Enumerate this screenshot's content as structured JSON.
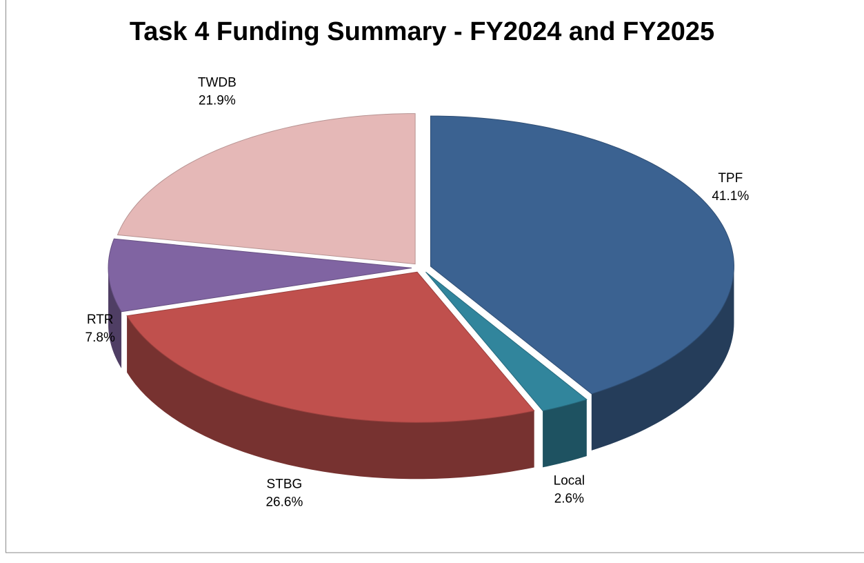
{
  "chart_data": {
    "type": "pie",
    "title": "Task 4 Funding Summary - FY2024 and FY2025",
    "categories": [
      "TPF",
      "Local",
      "STBG",
      "RTR",
      "TWDB"
    ],
    "values": [
      41.1,
      2.6,
      26.6,
      7.8,
      21.9
    ],
    "value_labels": [
      "41.1%",
      "2.6%",
      "26.6%",
      "7.8%",
      "21.9%"
    ],
    "colors": [
      "#3b6291",
      "#31859c",
      "#c0504d",
      "#8064a2",
      "#e5b8b7"
    ]
  }
}
